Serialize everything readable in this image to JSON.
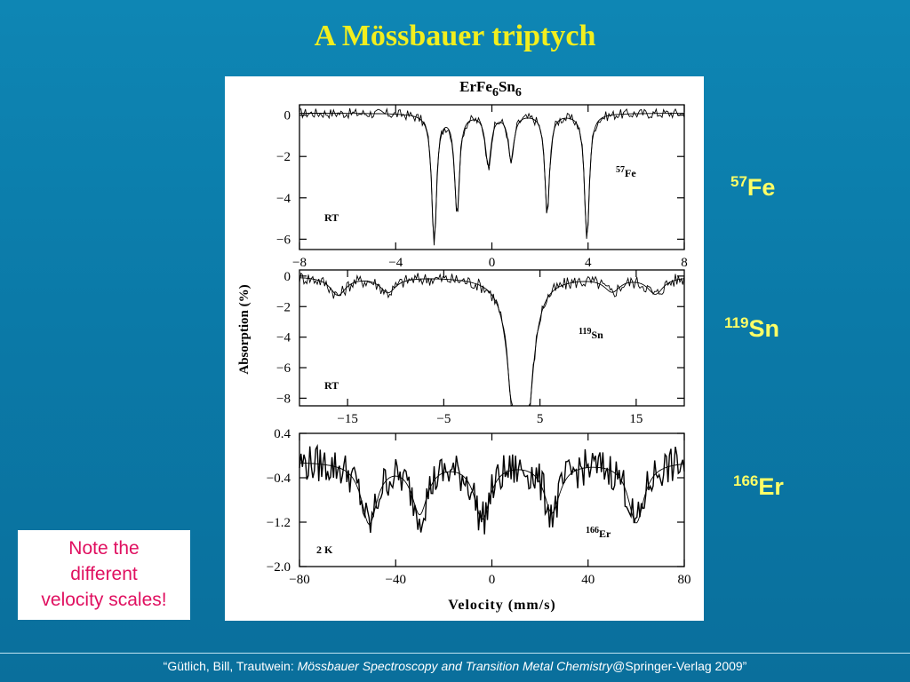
{
  "slide": {
    "title": "A Mössbauer triptych",
    "note_lines": [
      "Note the",
      "different",
      "velocity scales!"
    ],
    "isotope_labels": [
      {
        "mass": "57",
        "symbol": "Fe"
      },
      {
        "mass": "119",
        "symbol": "Sn"
      },
      {
        "mass": "166",
        "symbol": "Er"
      }
    ],
    "footer": {
      "prefix": "“Gütlich, Bill, Trautwein: ",
      "book": "Mössbauer Spectroscopy and Transition Metal Chemistry",
      "suffix": "@Springer-Verlag 2009”"
    }
  },
  "figure": {
    "title_base": "ErFe",
    "title_sub1": "6",
    "title_mid": "Sn",
    "title_sub2": "6",
    "ylabel": "Absorption (%)",
    "xlabel": "Velocity (mm/s)"
  },
  "chart_data": [
    {
      "type": "line",
      "isotope_label": {
        "mass": "57",
        "symbol": "Fe"
      },
      "temperature_label": "RT",
      "xlim": [
        -8,
        8
      ],
      "ylim": [
        -6.5,
        0.5
      ],
      "xticks": [
        -8,
        -4,
        0,
        4,
        8
      ],
      "xtick_labels": [
        "−8",
        "−4",
        "0",
        "4",
        "8"
      ],
      "yticks": [
        0,
        -2,
        -4,
        -6
      ],
      "ytick_labels": [
        "0",
        "−2",
        "−4",
        "−6"
      ],
      "baseline": 0.1,
      "peaks": [
        {
          "x": -2.4,
          "depth": 6.3,
          "width": 0.12
        },
        {
          "x": -1.45,
          "depth": 4.8,
          "width": 0.12
        },
        {
          "x": -0.15,
          "depth": 2.5,
          "width": 0.14
        },
        {
          "x": 0.8,
          "depth": 2.3,
          "width": 0.14
        },
        {
          "x": 2.3,
          "depth": 4.9,
          "width": 0.12
        },
        {
          "x": 3.95,
          "depth": 6.1,
          "width": 0.12
        }
      ]
    },
    {
      "type": "line",
      "isotope_label": {
        "mass": "119",
        "symbol": "Sn"
      },
      "temperature_label": "RT",
      "xlim": [
        -20,
        20
      ],
      "ylim": [
        -8.5,
        0.4
      ],
      "xticks": [
        -15,
        -5,
        5,
        15
      ],
      "xtick_labels": [
        "−15",
        "−5",
        "5",
        "15"
      ],
      "yticks": [
        0,
        -2,
        -4,
        -6,
        -8
      ],
      "ytick_labels": [
        "0",
        "−2",
        "−4",
        "−6",
        "−8"
      ],
      "baseline": 0.0,
      "peaks": [
        {
          "x": -16.0,
          "depth": 1.2,
          "width": 1.0
        },
        {
          "x": -10.8,
          "depth": 1.0,
          "width": 1.0
        },
        {
          "x": 2.3,
          "depth": 8.0,
          "width": 0.8
        },
        {
          "x": 3.7,
          "depth": 7.8,
          "width": 0.8
        },
        {
          "x": 12.5,
          "depth": 0.9,
          "width": 1.0
        },
        {
          "x": 17.0,
          "depth": 1.1,
          "width": 1.0
        }
      ]
    },
    {
      "type": "line",
      "isotope_label": {
        "mass": "166",
        "symbol": "Er"
      },
      "temperature_label": "2 K",
      "xlim": [
        -80,
        80
      ],
      "ylim": [
        -2.0,
        0.4
      ],
      "xticks": [
        -80,
        -40,
        0,
        40,
        80
      ],
      "xtick_labels": [
        "−80",
        "−40",
        "0",
        "40",
        "80"
      ],
      "yticks": [
        0.4,
        -0.4,
        -1.2,
        -2.0
      ],
      "ytick_labels": [
        "0.4",
        "−0.4",
        "−1.2",
        "−2.0"
      ],
      "baseline": -0.1,
      "peaks": [
        {
          "x": -51,
          "depth": 1.1,
          "width": 4
        },
        {
          "x": -30,
          "depth": 0.9,
          "width": 4
        },
        {
          "x": -4,
          "depth": 1.0,
          "width": 4
        },
        {
          "x": 25,
          "depth": 0.9,
          "width": 4
        },
        {
          "x": 60,
          "depth": 1.1,
          "width": 4
        }
      ]
    }
  ]
}
